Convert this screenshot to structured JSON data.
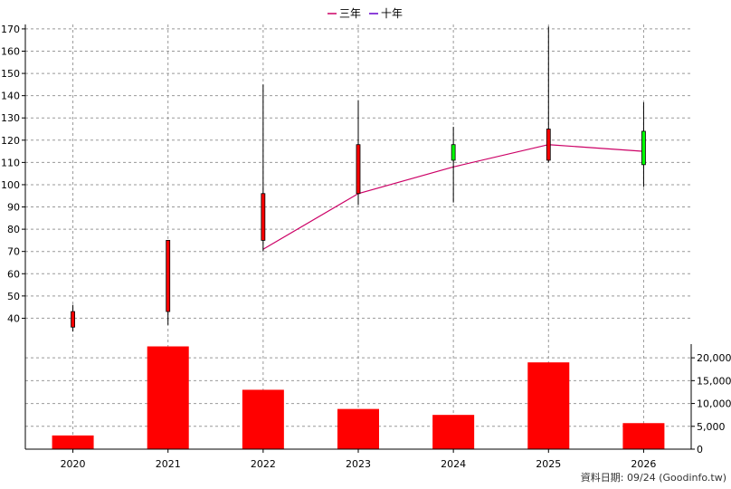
{
  "chart_data": {
    "type": "candlestick-with-volume",
    "legend": [
      {
        "label": "三年",
        "color": "#cc0066"
      },
      {
        "label": "十年",
        "color": "#6600cc"
      }
    ],
    "categories": [
      "2020",
      "2021",
      "2022",
      "2023",
      "2024",
      "2025",
      "2026"
    ],
    "price_axis": {
      "ylim": [
        30,
        172
      ],
      "ticks": [
        40,
        50,
        60,
        70,
        80,
        90,
        100,
        110,
        120,
        130,
        140,
        150,
        160,
        170
      ],
      "tick_labels": [
        "40",
        "50",
        "60",
        "70",
        "80",
        "90",
        "100",
        "110",
        "120",
        "130",
        "140",
        "150",
        "160",
        "170"
      ]
    },
    "candles": [
      {
        "year": "2020",
        "open": 36,
        "close": 43,
        "high": 46,
        "low": 34,
        "color": "#ff0000"
      },
      {
        "year": "2021",
        "open": 43,
        "close": 75,
        "high": 75,
        "low": 37,
        "color": "#ff0000"
      },
      {
        "year": "2022",
        "open": 75,
        "close": 96,
        "high": 145,
        "low": 70,
        "color": "#ff0000"
      },
      {
        "year": "2023",
        "open": 96,
        "close": 118,
        "high": 138,
        "low": 91,
        "color": "#ff0000"
      },
      {
        "year": "2024",
        "open": 118,
        "close": 111,
        "high": 126,
        "low": 92,
        "color": "#00ff00"
      },
      {
        "year": "2025",
        "open": 111,
        "close": 125,
        "high": 171,
        "low": 110,
        "color": "#ff0000"
      },
      {
        "year": "2026",
        "open": 124,
        "close": 109,
        "high": 137,
        "low": 99,
        "color": "#00ff00"
      }
    ],
    "three_year_line": {
      "color": "#cc0066",
      "points": [
        {
          "year": "2022",
          "value": 71
        },
        {
          "year": "2023",
          "value": 96
        },
        {
          "year": "2024",
          "value": 108
        },
        {
          "year": "2025",
          "value": 118
        },
        {
          "year": "2026",
          "value": 115
        }
      ]
    },
    "volume_axis": {
      "ylim": [
        0,
        23000
      ],
      "ticks": [
        0,
        5000,
        10000,
        15000,
        20000
      ],
      "tick_labels": [
        "0",
        "5,000",
        "10,000",
        "15,000",
        "20,000"
      ]
    },
    "volume": {
      "color": "#ff0000",
      "values": [
        3000,
        22500,
        13000,
        8800,
        7500,
        19000,
        5700
      ]
    },
    "grid": true
  },
  "footer": {
    "source_text": "資料日期: 09/24  (Goodinfo.tw)"
  }
}
